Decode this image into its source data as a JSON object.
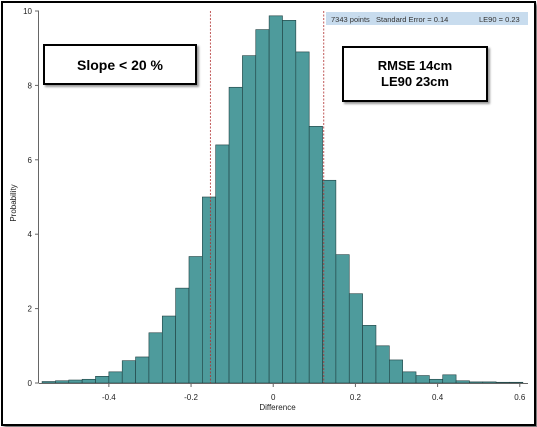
{
  "chart_data": {
    "type": "bar",
    "xlabel": "Difference",
    "ylabel": "Probability",
    "xlim": [
      -0.57,
      0.62
    ],
    "ylim": [
      0,
      10
    ],
    "x_ticks": [
      -0.4,
      -0.2,
      0,
      0.2,
      0.4,
      0.6
    ],
    "x_tick_labels": [
      "-0.4",
      "-0.2",
      "0",
      "0.2",
      "0.4",
      "0.6"
    ],
    "y_ticks": [
      0,
      2,
      4,
      6,
      8,
      10
    ],
    "y_tick_labels": [
      "0",
      "2",
      "4",
      "6",
      "8",
      "10"
    ],
    "bin_width": 0.0325,
    "bins": [
      {
        "x0": -0.5625,
        "value": 0.04
      },
      {
        "x0": -0.53,
        "value": 0.06
      },
      {
        "x0": -0.4975,
        "value": 0.08
      },
      {
        "x0": -0.465,
        "value": 0.1
      },
      {
        "x0": -0.4325,
        "value": 0.18
      },
      {
        "x0": -0.4,
        "value": 0.3
      },
      {
        "x0": -0.3675,
        "value": 0.6
      },
      {
        "x0": -0.335,
        "value": 0.7
      },
      {
        "x0": -0.3025,
        "value": 1.35
      },
      {
        "x0": -0.27,
        "value": 1.8
      },
      {
        "x0": -0.2375,
        "value": 2.55
      },
      {
        "x0": -0.205,
        "value": 3.4
      },
      {
        "x0": -0.1725,
        "value": 5.0
      },
      {
        "x0": -0.14,
        "value": 6.4
      },
      {
        "x0": -0.1075,
        "value": 7.95
      },
      {
        "x0": -0.075,
        "value": 8.8
      },
      {
        "x0": -0.0425,
        "value": 9.5
      },
      {
        "x0": -0.01,
        "value": 9.87
      },
      {
        "x0": 0.0225,
        "value": 9.75
      },
      {
        "x0": 0.055,
        "value": 8.9
      },
      {
        "x0": 0.0875,
        "value": 6.9
      },
      {
        "x0": 0.12,
        "value": 5.45
      },
      {
        "x0": 0.1525,
        "value": 3.45
      },
      {
        "x0": 0.185,
        "value": 2.4
      },
      {
        "x0": 0.2175,
        "value": 1.55
      },
      {
        "x0": 0.25,
        "value": 1.0
      },
      {
        "x0": 0.2825,
        "value": 0.62
      },
      {
        "x0": 0.315,
        "value": 0.3
      },
      {
        "x0": 0.3475,
        "value": 0.2
      },
      {
        "x0": 0.38,
        "value": 0.1
      },
      {
        "x0": 0.4125,
        "value": 0.22
      },
      {
        "x0": 0.445,
        "value": 0.06
      },
      {
        "x0": 0.4775,
        "value": 0.03
      },
      {
        "x0": 0.51,
        "value": 0.03
      },
      {
        "x0": 0.5425,
        "value": 0.02
      },
      {
        "x0": 0.575,
        "value": 0.02
      }
    ],
    "reference_lines_x": [
      -0.153,
      0.123
    ],
    "grid": false,
    "colors": {
      "bar_fill": "#4e9b9c",
      "bar_edge": "#1f3f40",
      "reference_line": "#b03030",
      "info_bar": "#c8dcee"
    }
  },
  "info_bar": {
    "points": "7343 points",
    "standard_error": "Standard Error = 0.14",
    "le90": "LE90 = 0.23"
  },
  "annotations": {
    "slope": "Slope < 20 %",
    "rmse": "RMSE 14cm",
    "le90": "LE90 23cm"
  }
}
